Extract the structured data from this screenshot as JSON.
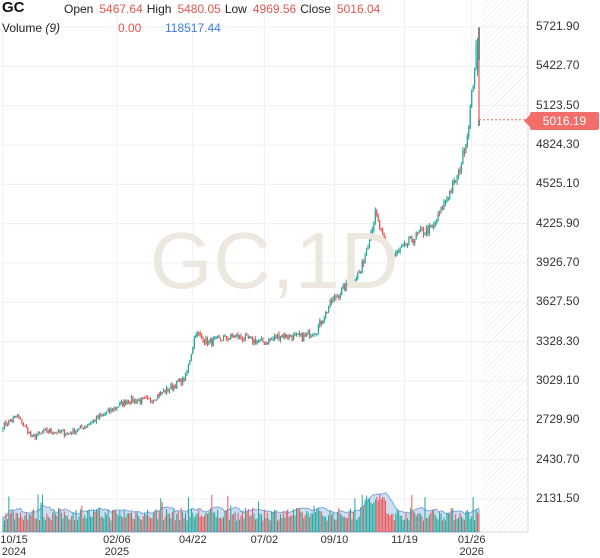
{
  "header": {
    "symbol": "GC",
    "open_label": "Open",
    "open_value": "5467.64",
    "high_label": "High",
    "high_value": "5480.05",
    "low_label": "Low",
    "low_value": "4969.56",
    "close_label": "Close",
    "close_value": "5016.04",
    "volume_label": "Volume",
    "volume_period": "(9)",
    "volume_value_1": "0.00",
    "volume_value_2": "118517.44"
  },
  "watermark": "GC,1D",
  "last_price_tag": "5016.19",
  "colors": {
    "up": "#26a69a",
    "down": "#ef5350",
    "volume_area": "#bcd3ee",
    "price_tag": "#f26e6b"
  },
  "chart_data": {
    "type": "candlestick",
    "symbol": "GC",
    "interval": "1D",
    "y_ticks": [
      "5721.90",
      "5422.70",
      "5123.50",
      "4824.30",
      "4525.10",
      "4225.90",
      "3926.70",
      "3627.50",
      "3328.30",
      "3029.10",
      "2729.90",
      "2430.70",
      "2131.50"
    ],
    "ylim": [
      2131.5,
      5721.9
    ],
    "x_ticks": [
      {
        "label": "10/15",
        "year": "2024",
        "index": 0
      },
      {
        "label": "02/06",
        "year": "2025",
        "index": 78
      },
      {
        "label": "04/22",
        "year": "",
        "index": 130
      },
      {
        "label": "07/02",
        "year": "",
        "index": 179
      },
      {
        "label": "09/10",
        "year": "",
        "index": 227
      },
      {
        "label": "11/19",
        "year": "",
        "index": 275
      },
      {
        "label": "01/26",
        "year": "2026",
        "index": 321
      }
    ],
    "close_anchors": [
      [
        0,
        2690
      ],
      [
        10,
        2760
      ],
      [
        20,
        2600
      ],
      [
        30,
        2650
      ],
      [
        45,
        2630
      ],
      [
        55,
        2680
      ],
      [
        70,
        2780
      ],
      [
        85,
        2880
      ],
      [
        100,
        2880
      ],
      [
        115,
        2980
      ],
      [
        125,
        3050
      ],
      [
        132,
        3400
      ],
      [
        140,
        3320
      ],
      [
        150,
        3350
      ],
      [
        160,
        3370
      ],
      [
        170,
        3340
      ],
      [
        180,
        3320
      ],
      [
        190,
        3380
      ],
      [
        205,
        3360
      ],
      [
        215,
        3420
      ],
      [
        225,
        3630
      ],
      [
        235,
        3750
      ],
      [
        245,
        3860
      ],
      [
        255,
        4300
      ],
      [
        262,
        4050
      ],
      [
        268,
        3980
      ],
      [
        275,
        4050
      ],
      [
        285,
        4150
      ],
      [
        295,
        4200
      ],
      [
        305,
        4450
      ],
      [
        312,
        4600
      ],
      [
        318,
        4900
      ],
      [
        322,
        5300
      ],
      [
        324,
        5550
      ],
      [
        326,
        5016
      ]
    ],
    "last": {
      "open": 5467.64,
      "high": 5480.05,
      "low": 4969.56,
      "close": 5016.04
    },
    "volume_series": "Volume (9)"
  }
}
